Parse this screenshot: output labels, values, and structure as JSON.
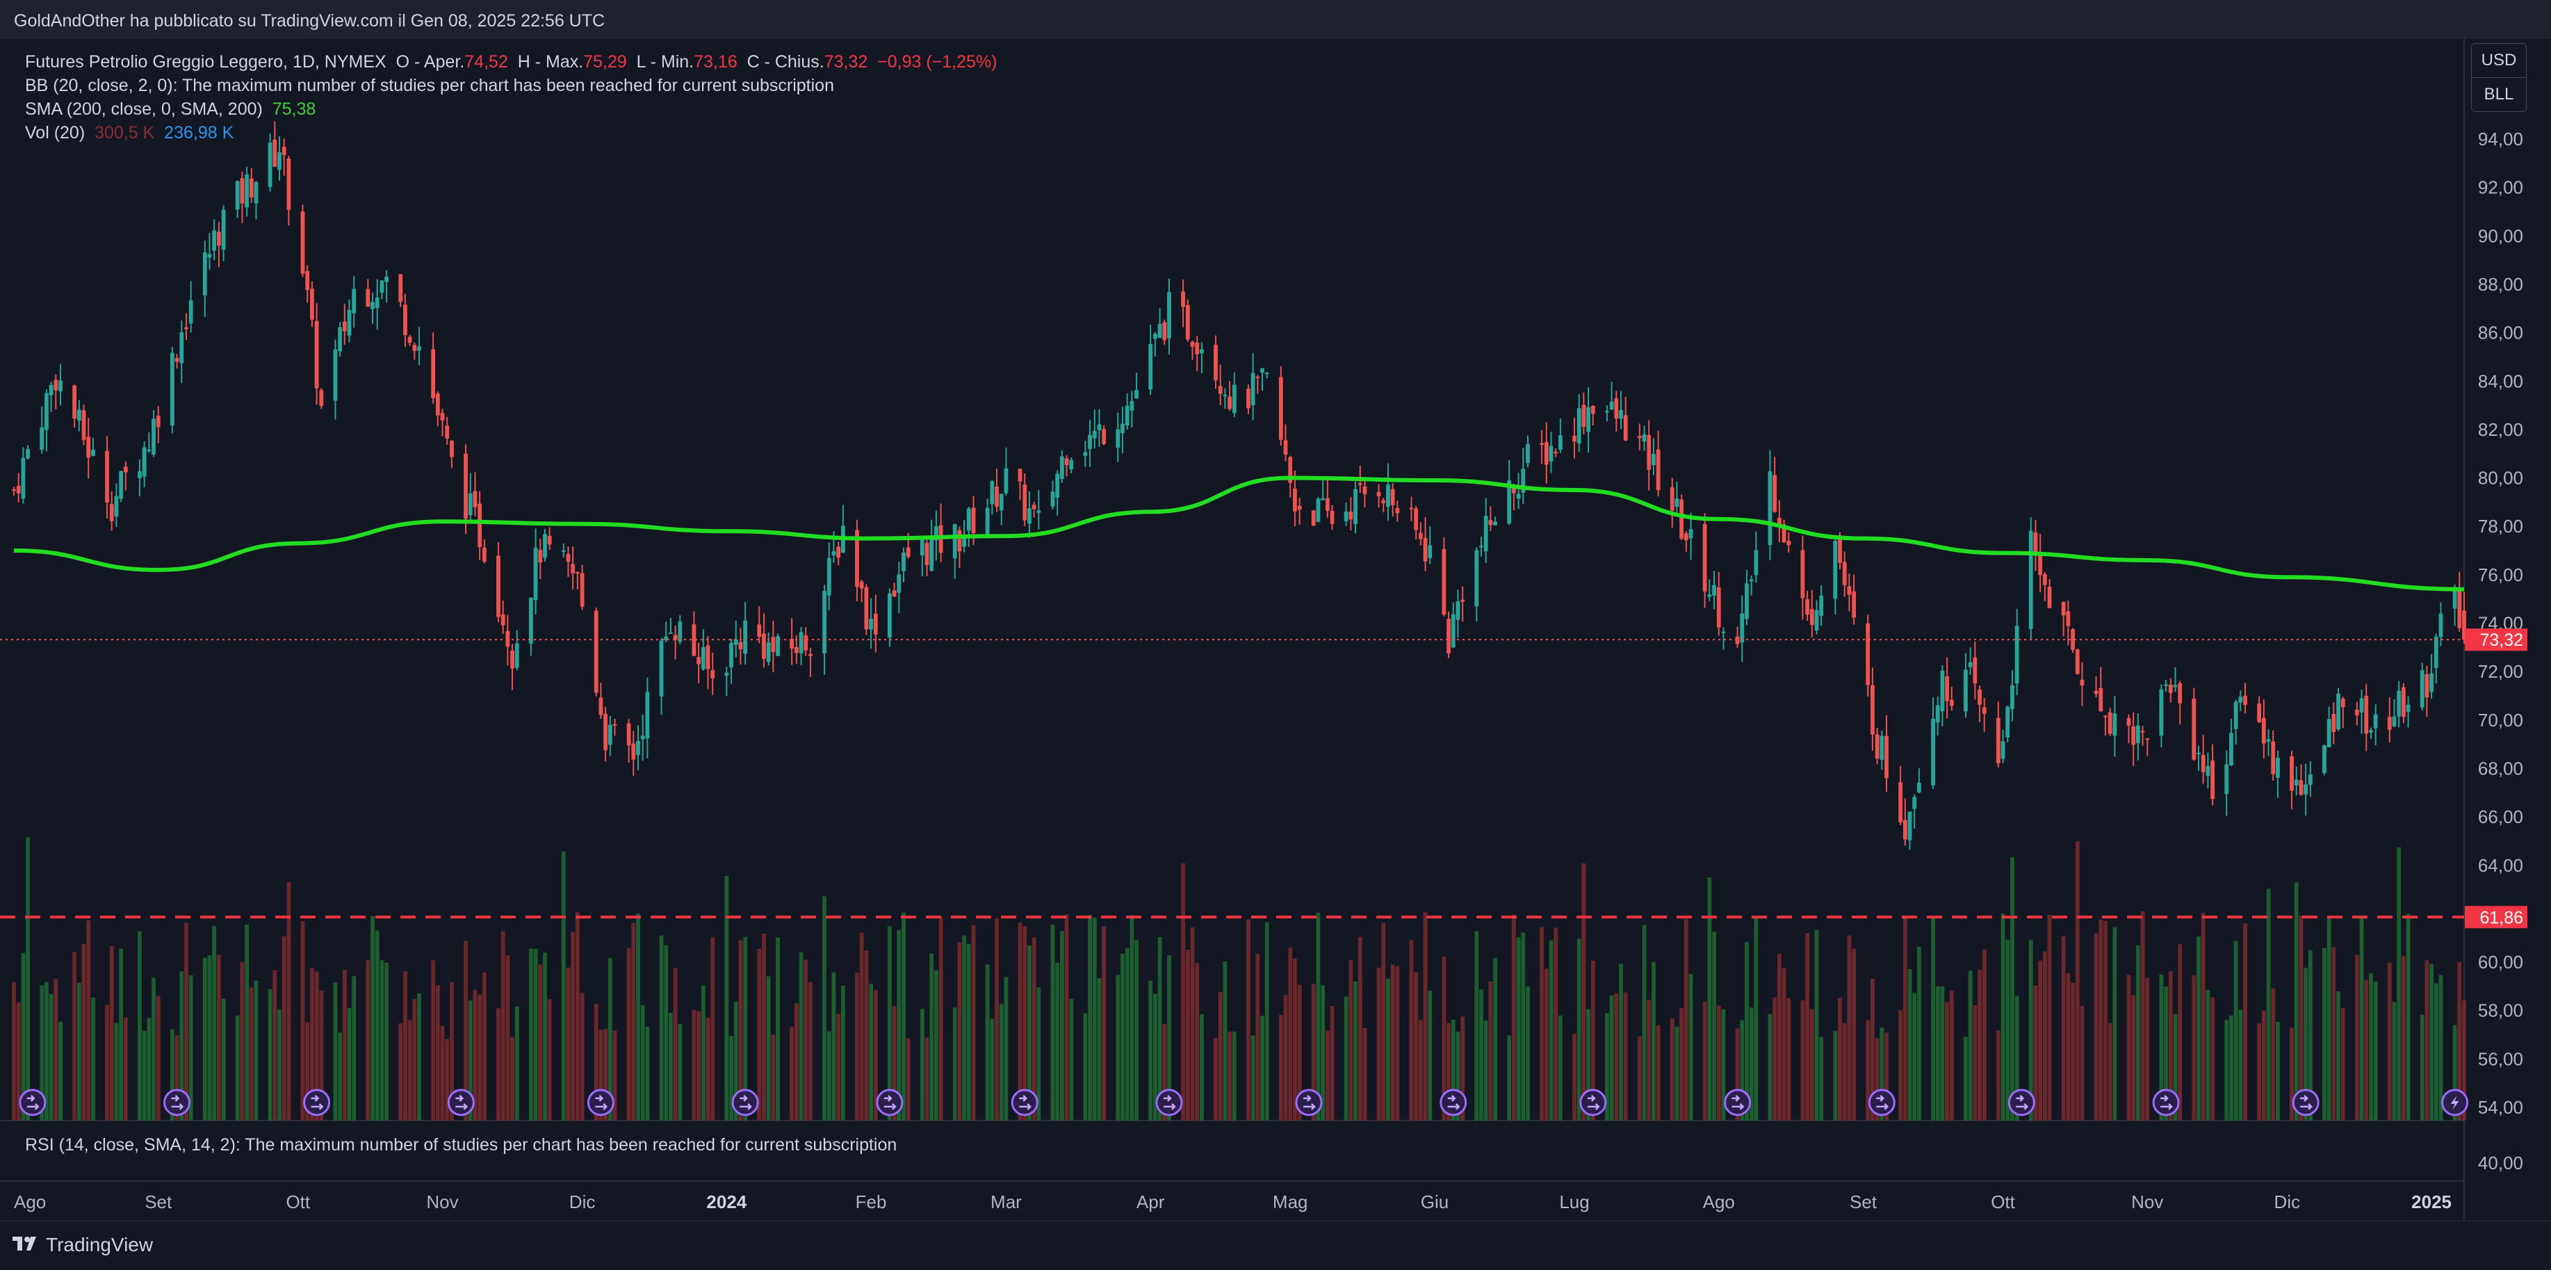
{
  "publisher_line": "GoldAndOther ha pubblicato su TradingView.com il Gen 08, 2025 22:56 UTC",
  "legend": {
    "symbol": "Futures Petrolio Greggio Leggero, 1D, NYMEX",
    "o_label": "O - Aper.",
    "o_value": "74,52",
    "h_label": "H - Max.",
    "h_value": "75,29",
    "l_label": "L - Min.",
    "l_value": "73,16",
    "c_label": "C - Chius.",
    "c_value": "73,32",
    "change": "−0,93 (−1,25%)",
    "bb": "BB (20, close, 2, 0): The maximum number of studies per chart has been reached for current subscription",
    "sma_label": "SMA (200, close, 0, SMA, 200)",
    "sma_value": "75,38",
    "vol_label": "Vol (20)",
    "vol_value1": "300,5 K",
    "vol_value2": "236,98 K"
  },
  "rsi_text": "RSI (14, close, SMA, 14, 2): The maximum number of studies per chart has been reached for current subscription",
  "currency": [
    "USD",
    "BLL"
  ],
  "price_axis": [
    "94,00",
    "92,00",
    "90,00",
    "88,00",
    "86,00",
    "84,00",
    "82,00",
    "80,00",
    "78,00",
    "76,00",
    "74,00",
    "72,00",
    "70,00",
    "68,00",
    "66,00",
    "64,00",
    "62,00",
    "60,00",
    "58,00",
    "56,00",
    "54,00"
  ],
  "rsi_axis": [
    "40,00"
  ],
  "time_axis": [
    "Ago",
    "Set",
    "Ott",
    "Nov",
    "Dic",
    "2024",
    "Feb",
    "Mar",
    "Apr",
    "Mag",
    "Giu",
    "Lug",
    "Ago",
    "Set",
    "Ott",
    "Nov",
    "Dic",
    "2025"
  ],
  "last_price_label": "73,32",
  "hline_label": "61,86",
  "brand": "TradingView",
  "colors": {
    "up": "#26a69a",
    "down": "#ef5350",
    "sma": "#22dd22",
    "background": "#131722",
    "hline": "#f23645"
  },
  "chart_data": {
    "type": "candlestick",
    "title": "Futures Petrolio Greggio Leggero, 1D, NYMEX",
    "currency": "USD",
    "ylim": [
      53,
      96
    ],
    "x_range": [
      "2023-08-01",
      "2025-01-08"
    ],
    "months": [
      "Ago",
      "Set",
      "Ott",
      "Nov",
      "Dic",
      "2024",
      "Feb",
      "Mar",
      "Apr",
      "Mag",
      "Giu",
      "Lug",
      "Ago",
      "Set",
      "Ott",
      "Nov",
      "Dic",
      "2025"
    ],
    "close_path": [
      [
        "2023-08-01",
        79.5
      ],
      [
        "2023-08-10",
        84.3
      ],
      [
        "2023-08-22",
        79.0
      ],
      [
        "2023-08-30",
        81.6
      ],
      [
        "2023-09-08",
        87.4
      ],
      [
        "2023-09-15",
        90.8
      ],
      [
        "2023-09-27",
        93.7
      ],
      [
        "2023-10-02",
        88.8
      ],
      [
        "2023-10-06",
        82.8
      ],
      [
        "2023-10-13",
        87.7
      ],
      [
        "2023-10-20",
        88.1
      ],
      [
        "2023-10-27",
        85.5
      ],
      [
        "2023-11-03",
        80.5
      ],
      [
        "2023-11-10",
        77.2
      ],
      [
        "2023-11-16",
        72.9
      ],
      [
        "2023-11-22",
        77.1
      ],
      [
        "2023-11-30",
        75.8
      ],
      [
        "2023-12-06",
        69.4
      ],
      [
        "2023-12-12",
        68.6
      ],
      [
        "2023-12-20",
        74.2
      ],
      [
        "2023-12-29",
        71.7
      ],
      [
        "2024-01-05",
        73.8
      ],
      [
        "2024-01-12",
        72.7
      ],
      [
        "2024-01-19",
        73.4
      ],
      [
        "2024-01-26",
        78.0
      ],
      [
        "2024-02-01",
        73.8
      ],
      [
        "2024-02-09",
        76.8
      ],
      [
        "2024-02-20",
        77.6
      ],
      [
        "2024-03-01",
        79.9
      ],
      [
        "2024-03-08",
        78.0
      ],
      [
        "2024-03-14",
        81.3
      ],
      [
        "2024-03-20",
        81.7
      ],
      [
        "2024-03-28",
        83.2
      ],
      [
        "2024-04-05",
        86.9
      ],
      [
        "2024-04-12",
        85.7
      ],
      [
        "2024-04-19",
        83.1
      ],
      [
        "2024-04-26",
        83.9
      ],
      [
        "2024-05-02",
        79.0
      ],
      [
        "2024-05-10",
        78.3
      ],
      [
        "2024-05-20",
        79.8
      ],
      [
        "2024-05-31",
        76.9
      ],
      [
        "2024-06-04",
        73.3
      ],
      [
        "2024-06-07",
        75.5
      ],
      [
        "2024-06-14",
        78.5
      ],
      [
        "2024-06-21",
        80.7
      ],
      [
        "2024-06-28",
        81.5
      ],
      [
        "2024-07-05",
        83.2
      ],
      [
        "2024-07-12",
        82.2
      ],
      [
        "2024-07-19",
        80.1
      ],
      [
        "2024-07-26",
        77.2
      ],
      [
        "2024-08-05",
        72.9
      ],
      [
        "2024-08-12",
        80.1
      ],
      [
        "2024-08-20",
        74.0
      ],
      [
        "2024-08-26",
        77.4
      ],
      [
        "2024-09-04",
        69.2
      ],
      [
        "2024-09-10",
        65.8
      ],
      [
        "2024-09-17",
        71.2
      ],
      [
        "2024-09-24",
        71.6
      ],
      [
        "2024-09-30",
        68.2
      ],
      [
        "2024-10-07",
        77.1
      ],
      [
        "2024-10-14",
        73.8
      ],
      [
        "2024-10-21",
        70.6
      ],
      [
        "2024-10-31",
        69.3
      ],
      [
        "2024-11-06",
        71.7
      ],
      [
        "2024-11-15",
        67.1
      ],
      [
        "2024-11-22",
        71.2
      ],
      [
        "2024-11-29",
        68.0
      ],
      [
        "2024-12-06",
        67.2
      ],
      [
        "2024-12-13",
        71.3
      ],
      [
        "2024-12-20",
        69.5
      ],
      [
        "2024-12-31",
        71.7
      ],
      [
        "2025-01-03",
        73.9
      ],
      [
        "2025-01-06",
        74.6
      ],
      [
        "2025-01-08",
        73.3
      ]
    ],
    "sma_200": [
      [
        "2023-08-01",
        77.0
      ],
      [
        "2023-09-01",
        76.2
      ],
      [
        "2023-10-01",
        77.3
      ],
      [
        "2023-11-01",
        78.2
      ],
      [
        "2023-12-01",
        78.1
      ],
      [
        "2024-01-01",
        77.8
      ],
      [
        "2024-02-01",
        77.5
      ],
      [
        "2024-03-01",
        77.6
      ],
      [
        "2024-04-01",
        78.6
      ],
      [
        "2024-05-01",
        80.0
      ],
      [
        "2024-06-01",
        79.9
      ],
      [
        "2024-07-01",
        79.5
      ],
      [
        "2024-08-01",
        78.3
      ],
      [
        "2024-09-01",
        77.5
      ],
      [
        "2024-10-01",
        76.9
      ],
      [
        "2024-11-01",
        76.6
      ],
      [
        "2024-12-01",
        75.9
      ],
      [
        "2025-01-08",
        75.4
      ]
    ],
    "sma_last": 75.38,
    "horizontal_line": 61.86,
    "last_price": 73.32,
    "ohlc_last": {
      "open": 74.52,
      "high": 75.29,
      "low": 73.16,
      "close": 73.32,
      "change": -0.93,
      "change_pct": -1.25
    },
    "volume_last": [
      300.5,
      236.98
    ],
    "event_markers": [
      "2023-08-05",
      "2023-09-05",
      "2023-10-05",
      "2023-11-05",
      "2023-12-05",
      "2024-01-05",
      "2024-02-05",
      "2024-03-05",
      "2024-04-05",
      "2024-05-05",
      "2024-06-05",
      "2024-07-05",
      "2024-08-05",
      "2024-09-05",
      "2024-10-05",
      "2024-11-05",
      "2024-12-05",
      "2025-01-06"
    ]
  }
}
